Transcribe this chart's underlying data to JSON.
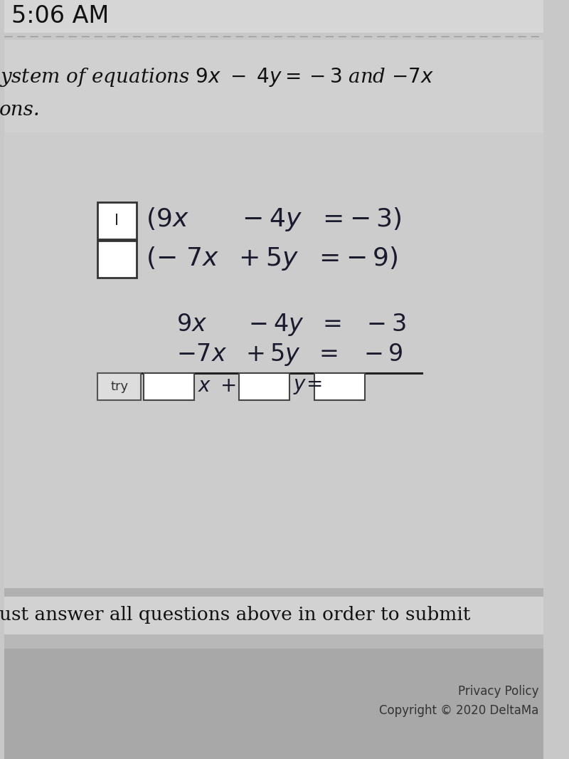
{
  "time_text": "5:06 AM",
  "question_line1": "ystem of equations $9x - 4y = -3$ and $-7x$",
  "question_line2": "ons.",
  "footer_text": "ust answer all questions above in order to submit",
  "privacy_text": "Privacy Policy",
  "copyright_text": "Copyright © 2020 DeltaMa",
  "try_label": "try",
  "bg_main": "#c8c8c8",
  "bg_top": "#d0d0d0",
  "bg_content": "#cccccc",
  "bg_footer_sep": "#b8b8b8",
  "bg_bottom": "#a8a8a8",
  "box_color": "white",
  "box_edge": "#444444",
  "text_dark": "#1a1a2e",
  "text_mid": "#333333",
  "time_fontsize": 24,
  "q_fontsize": 20,
  "math_fontsize": 26,
  "math_fontsize2": 24,
  "footer_fontsize": 19,
  "small_fontsize": 12
}
